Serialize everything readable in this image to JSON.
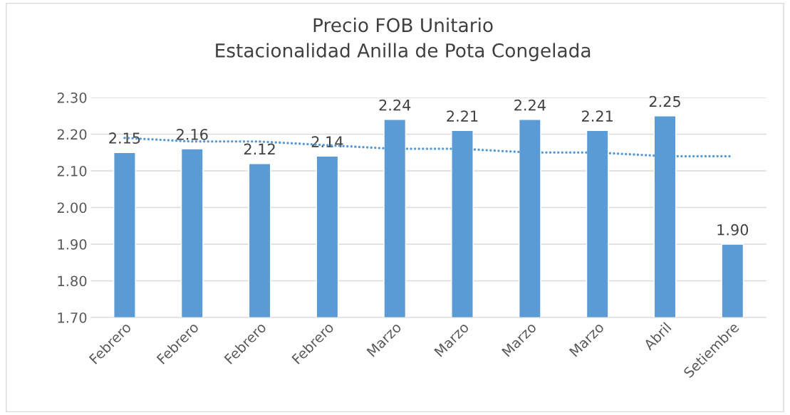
{
  "chart_data": {
    "type": "bar",
    "title": "Precio FOB Unitario\nEstacionalidad Anilla de Pota Congelada",
    "categories": [
      "Febrero",
      "Febrero",
      "Febrero",
      "Febrero",
      "Marzo",
      "Marzo",
      "Marzo",
      "Marzo",
      "Abril",
      "Setiembre"
    ],
    "series": [
      {
        "color": "#5b9bd5",
        "values": [
          2.15,
          2.16,
          2.12,
          2.14,
          2.24,
          2.21,
          2.24,
          2.21,
          2.25,
          1.9
        ],
        "value_labels": [
          "2.15",
          "2.16",
          "2.12",
          "2.14",
          "2.24",
          "2.21",
          "2.24",
          "2.21",
          "2.25",
          "1.90"
        ]
      },
      {
        "type": "line",
        "color": "#5b9bd5",
        "line_style": "dotted",
        "values": [
          2.19,
          2.18,
          2.18,
          2.17,
          2.16,
          2.16,
          2.15,
          2.15,
          2.14,
          2.14
        ]
      }
    ],
    "ylim": [
      1.7,
      2.3
    ],
    "yticks": [
      {
        "value": 1.7,
        "label": "1.70"
      },
      {
        "value": 1.8,
        "label": "1.80"
      },
      {
        "value": 1.9,
        "label": "1.90"
      },
      {
        "value": 2.0,
        "label": "2.00"
      },
      {
        "value": 2.1,
        "label": "2.10"
      },
      {
        "value": 2.2,
        "label": "2.20"
      },
      {
        "value": 2.3,
        "label": "2.30"
      }
    ],
    "grid": "y",
    "legend": false
  }
}
